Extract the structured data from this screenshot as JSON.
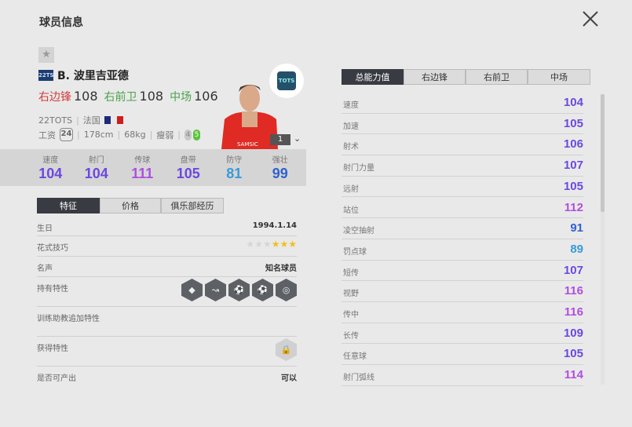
{
  "header": {
    "title": "球员信息",
    "close_icon": "close-x-icon"
  },
  "player": {
    "season_badge": "22TS",
    "name": "B. 波里吉亚德",
    "positions": [
      {
        "pos": "右边锋",
        "rating": "108",
        "color": "#d23a3a"
      },
      {
        "pos": "右前卫",
        "rating": "108",
        "color": "#4aa24a"
      },
      {
        "pos": "中场",
        "rating": "106",
        "color": "#4aa24a"
      }
    ],
    "season": "22TOTS",
    "nation": "法国",
    "salary_label": "工资",
    "salary": "24",
    "height": "178cm",
    "weight": "68kg",
    "body_type": "瘦弱",
    "weak_foot": "4",
    "strong_foot": "5",
    "club_badge": "TOTS",
    "upgrade_level": "1"
  },
  "summary_stats": [
    {
      "label": "速度",
      "value": "104",
      "color": "#6b48e0"
    },
    {
      "label": "射门",
      "value": "104",
      "color": "#6b48e0"
    },
    {
      "label": "传球",
      "value": "111",
      "color": "#b04ee0"
    },
    {
      "label": "盘带",
      "value": "105",
      "color": "#6b48e0"
    },
    {
      "label": "防守",
      "value": "81",
      "color": "#3a9ad8"
    },
    {
      "label": "强壮",
      "value": "99",
      "color": "#2f62d0"
    }
  ],
  "left_tabs": [
    "特征",
    "价格",
    "俱乐部经历"
  ],
  "info": {
    "birthday_label": "生日",
    "birthday": "1994.1.14",
    "skill_label": "花式技巧",
    "skill_stars": 3,
    "skill_max": 6,
    "fame_label": "名声",
    "fame": "知名球员",
    "traits_label": "持有特性",
    "traits": [
      "diamond-icon",
      "cross-icon",
      "finesse-shot-icon",
      "power-header-icon",
      "long-shot-icon"
    ],
    "coach_label": "训练助教追加特性",
    "acquired_label": "获得特性",
    "producible_label": "是否可产出",
    "producible": "可以"
  },
  "right_tabs": [
    "总能力值",
    "右边锋",
    "右前卫",
    "中场"
  ],
  "attributes": [
    {
      "label": "速度",
      "value": "104",
      "color": "#6b48e0"
    },
    {
      "label": "加速",
      "value": "105",
      "color": "#6b48e0"
    },
    {
      "label": "射术",
      "value": "106",
      "color": "#6b48e0"
    },
    {
      "label": "射门力量",
      "value": "107",
      "color": "#6b48e0"
    },
    {
      "label": "远射",
      "value": "105",
      "color": "#6b48e0"
    },
    {
      "label": "站位",
      "value": "112",
      "color": "#b04ee0"
    },
    {
      "label": "凌空抽射",
      "value": "91",
      "color": "#2f62d0"
    },
    {
      "label": "罚点球",
      "value": "89",
      "color": "#3a9ad8"
    },
    {
      "label": "短传",
      "value": "107",
      "color": "#6b48e0"
    },
    {
      "label": "视野",
      "value": "116",
      "color": "#b04ee0"
    },
    {
      "label": "传中",
      "value": "116",
      "color": "#b04ee0"
    },
    {
      "label": "长传",
      "value": "109",
      "color": "#6b48e0"
    },
    {
      "label": "任意球",
      "value": "105",
      "color": "#6b48e0"
    },
    {
      "label": "射门弧线",
      "value": "114",
      "color": "#b04ee0"
    }
  ]
}
